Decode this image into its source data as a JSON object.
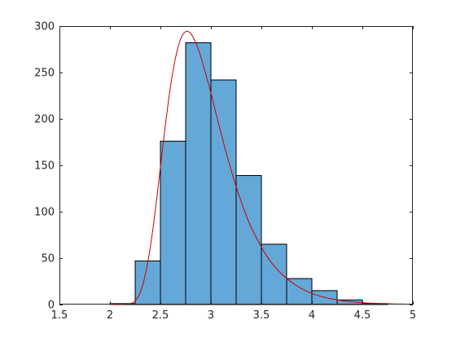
{
  "chart_data": {
    "type": "bar",
    "title": "",
    "xlabel": "",
    "ylabel": "",
    "xlim": [
      1.5,
      5
    ],
    "ylim": [
      0,
      300
    ],
    "xticks": [
      1.5,
      2,
      2.5,
      3,
      3.5,
      4,
      4.5,
      5
    ],
    "xtick_labels": [
      "1.5",
      "2",
      "2.5",
      "3",
      "3.5",
      "4",
      "4.5",
      "5"
    ],
    "yticks": [
      0,
      50,
      100,
      150,
      200,
      250,
      300
    ],
    "ytick_labels": [
      "0",
      "50",
      "100",
      "150",
      "200",
      "250",
      "300"
    ],
    "bin_width": 0.25,
    "bins": [
      {
        "x0": 2.0,
        "x1": 2.25,
        "count": 1
      },
      {
        "x0": 2.25,
        "x1": 2.5,
        "count": 47
      },
      {
        "x0": 2.5,
        "x1": 2.75,
        "count": 176
      },
      {
        "x0": 2.75,
        "x1": 3.0,
        "count": 282
      },
      {
        "x0": 3.0,
        "x1": 3.25,
        "count": 242
      },
      {
        "x0": 3.25,
        "x1": 3.5,
        "count": 139
      },
      {
        "x0": 3.5,
        "x1": 3.75,
        "count": 65
      },
      {
        "x0": 3.75,
        "x1": 4.0,
        "count": 28
      },
      {
        "x0": 4.0,
        "x1": 4.25,
        "count": 15
      },
      {
        "x0": 4.25,
        "x1": 4.5,
        "count": 5
      },
      {
        "x0": 4.5,
        "x1": 4.75,
        "count": 1
      }
    ],
    "fit_curve": {
      "x": [
        2.0,
        2.1,
        2.2,
        2.25,
        2.3,
        2.35,
        2.4,
        2.45,
        2.5,
        2.55,
        2.6,
        2.65,
        2.7,
        2.75,
        2.8,
        2.85,
        2.9,
        2.95,
        3.0,
        3.05,
        3.1,
        3.15,
        3.2,
        3.25,
        3.3,
        3.35,
        3.4,
        3.5,
        3.6,
        3.7,
        3.8,
        3.9,
        4.0,
        4.1,
        4.2,
        4.3,
        4.4,
        4.5,
        4.6,
        4.7,
        4.8,
        4.9,
        5.0
      ],
      "y": [
        0,
        0,
        1,
        4,
        13,
        32,
        62,
        102,
        148,
        194,
        235,
        266,
        286,
        294,
        292,
        282,
        267,
        248,
        228,
        206,
        185,
        164,
        145,
        127,
        111,
        96,
        83,
        62,
        45,
        33,
        24,
        17,
        12,
        8.5,
        6,
        4.2,
        3,
        2,
        1.4,
        1,
        0.7,
        0.5,
        0.3
      ]
    },
    "colors": {
      "bar_fill": "#64a8d8",
      "bar_edge": "#000000",
      "curve": "#cc0000",
      "axis": "#262626",
      "background": "#ffffff"
    },
    "grid": false,
    "legend": "none"
  }
}
